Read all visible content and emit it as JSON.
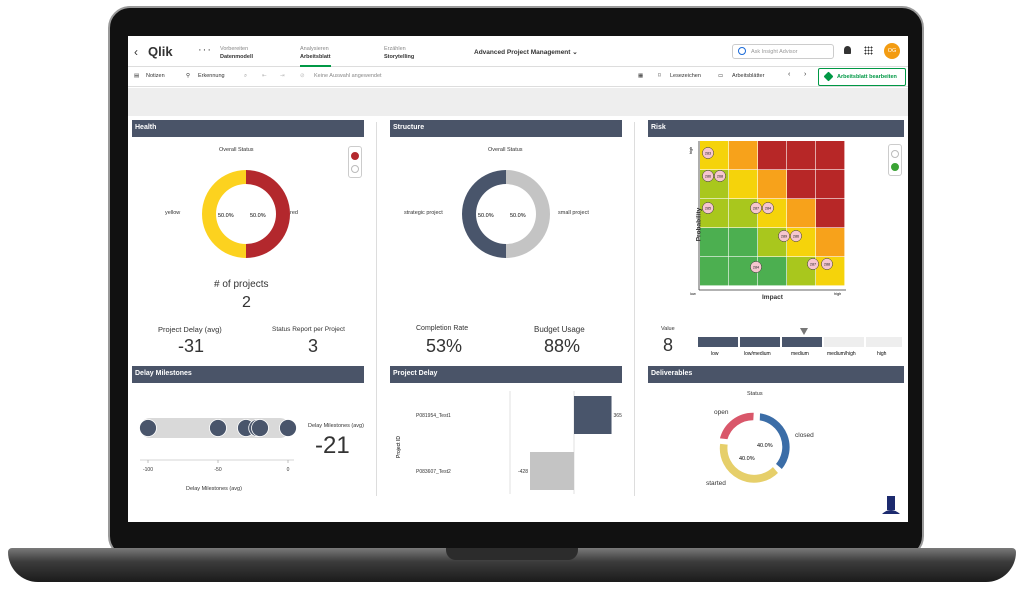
{
  "topbar": {
    "logo": "Qlik",
    "steps": [
      {
        "top": "Vorbereiten",
        "bottom": "Datenmodell"
      },
      {
        "top": "Analysieren",
        "bottom": "Arbeitsblatt"
      },
      {
        "top": "Erzählen",
        "bottom": "Storytelling"
      }
    ],
    "app_name": "Advanced Project Management",
    "search_placeholder": "Ask Insight Advisor",
    "avatar_initials": "OG"
  },
  "toolbar": {
    "notes": "Notizen",
    "insights": "Erkennung",
    "selection_status": "Keine Auswahl angewendet",
    "bookmarks": "Lesezeichen",
    "sheets": "Arbeitsblätter",
    "edit_sheet": "Arbeitsblatt bearbeiten"
  },
  "health": {
    "title": "Health",
    "chart_title": "Overall Status",
    "left_label": "yellow",
    "right_label": "red",
    "left_pct": "50.0%",
    "right_pct": "50.0%",
    "projects_label": "# of projects",
    "projects_value": "2",
    "delay_label": "Project Delay (avg)",
    "delay_value": "-31",
    "status_report_label": "Status Report per Project",
    "status_report_value": "3"
  },
  "structure": {
    "title": "Structure",
    "chart_title": "Overall Status",
    "left_label": "strategic project",
    "right_label": "small project",
    "left_pct": "50.0%",
    "right_pct": "50.0%",
    "completion_label": "Completion Rate",
    "completion_value": "53%",
    "budget_label": "Budget Usage",
    "budget_value": "88%"
  },
  "risk": {
    "title": "Risk",
    "x_label": "Impact",
    "y_label": "Probability",
    "x_low": "low",
    "x_high": "high",
    "y_high": "high",
    "value_label": "Value",
    "value": "8",
    "scale": [
      "low",
      "low/medium",
      "medium",
      "medium/high",
      "high"
    ],
    "bubbles": [
      "283",
      "286",
      "268",
      "285",
      "287",
      "284",
      "289",
      "286",
      "284",
      "287",
      "288"
    ]
  },
  "delay_milestones": {
    "title": "Delay Milestones",
    "x_label": "Delay Milestones (avg)",
    "ticks": [
      "-100",
      "-50",
      "0"
    ],
    "kpi_label": "Delay Milestones (avg)",
    "kpi_value": "-21"
  },
  "project_delay": {
    "title": "Project Delay",
    "y_label": "Project ID"
  },
  "deliverables": {
    "title": "Deliverables",
    "chart_title": "Status",
    "labels": {
      "open": "open",
      "closed": "closed",
      "started": "started"
    },
    "closed_pct": "40.0%",
    "started_pct": "40.0%"
  },
  "chart_data": [
    {
      "type": "pie",
      "title": "Overall Status",
      "categories": [
        "yellow",
        "red"
      ],
      "values": [
        50.0,
        50.0
      ]
    },
    {
      "type": "pie",
      "title": "Overall Status",
      "categories": [
        "strategic project",
        "small project"
      ],
      "values": [
        50.0,
        50.0
      ]
    },
    {
      "type": "bar",
      "categories": [
        "P081954_Test1",
        "P083607_Test2"
      ],
      "values": [
        365,
        -428
      ],
      "ylabel": "Project ID"
    },
    {
      "type": "scatter",
      "xlabel": "Delay Milestones (avg)",
      "x": [
        -100,
        -50,
        -30,
        -22,
        -20,
        0
      ],
      "xlim": [
        -100,
        0
      ]
    },
    {
      "type": "pie",
      "title": "Status",
      "categories": [
        "open",
        "closed",
        "started"
      ],
      "values": [
        20.0,
        40.0,
        40.0
      ]
    }
  ],
  "colors": {
    "header": "#4a5468",
    "red": "#b3282d",
    "yellow": "#fcd21f",
    "navy": "#49556b",
    "gray": "#c4c4c4",
    "green": "#009845",
    "closed": "#3b6da7",
    "started": "#e6cf6a",
    "open": "#d9576a"
  }
}
